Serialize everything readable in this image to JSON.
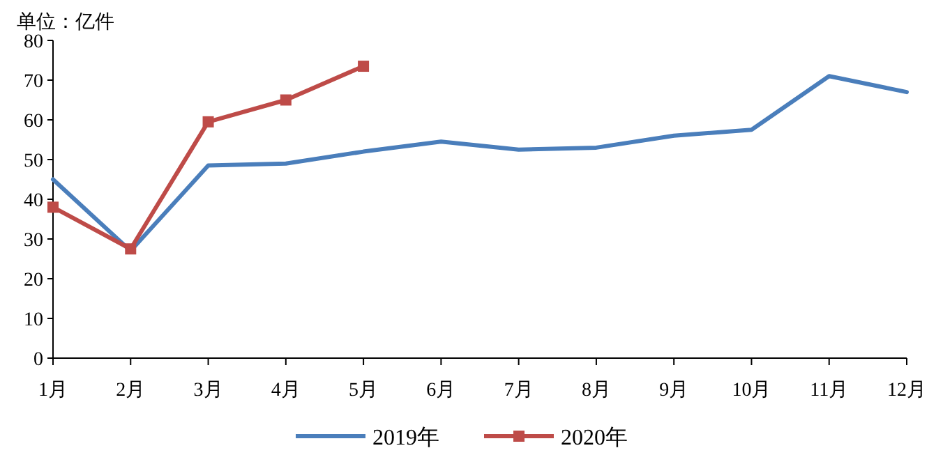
{
  "chart_data": {
    "type": "line",
    "ylabel": "单位：亿件",
    "categories": [
      "1月",
      "2月",
      "3月",
      "4月",
      "5月",
      "6月",
      "7月",
      "8月",
      "9月",
      "10月",
      "11月",
      "12月"
    ],
    "series": [
      {
        "name": "2019年",
        "color": "#4a7ebb",
        "marker": "none",
        "values": [
          45,
          27,
          48.5,
          49,
          52,
          54.5,
          52.5,
          53,
          56,
          57.5,
          71,
          67
        ]
      },
      {
        "name": "2020年",
        "color": "#be4b48",
        "marker": "square",
        "values": [
          38,
          27.5,
          59.5,
          65,
          73.5,
          null,
          null,
          null,
          null,
          null,
          null,
          null
        ]
      }
    ],
    "ylim": [
      0,
      80
    ],
    "yticks": [
      0,
      10,
      20,
      30,
      40,
      50,
      60,
      70,
      80
    ],
    "grid": false,
    "legend": "bottom",
    "line_style": "solid"
  }
}
